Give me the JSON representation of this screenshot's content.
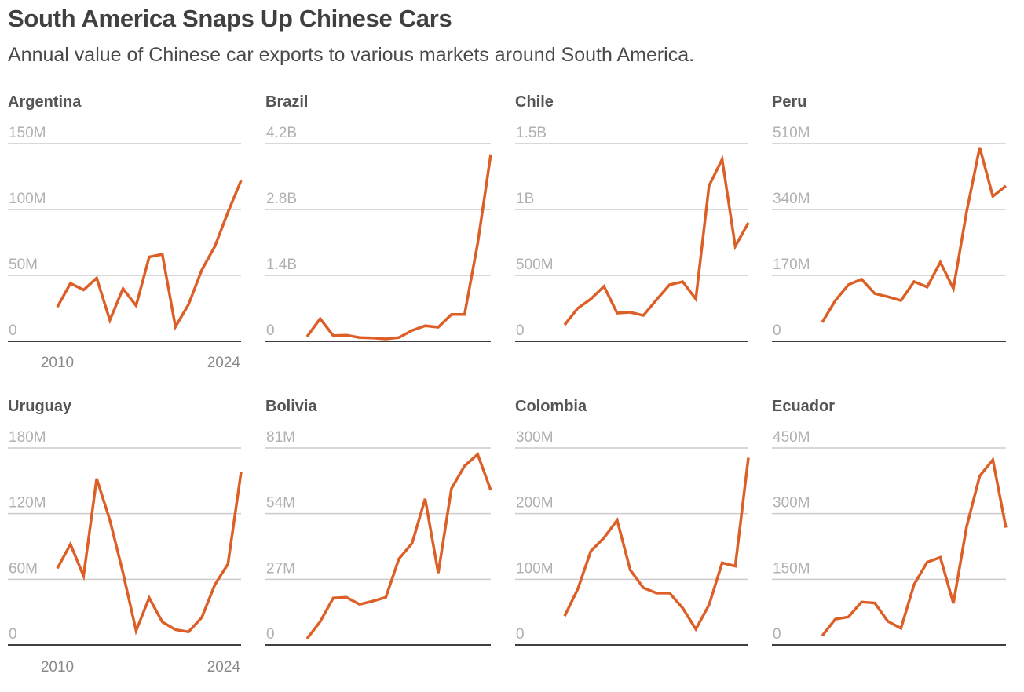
{
  "header": {
    "title": "South America Snaps Up Chinese Cars",
    "subtitle": "Annual value of Chinese car exports to various markets around South America."
  },
  "style": {
    "line_color": "#dc5f27",
    "grid_color": "#cccccc",
    "baseline_color": "#3f3f3f"
  },
  "chart_data": [
    {
      "type": "line",
      "title": "Argentina",
      "x": [
        2010,
        2011,
        2012,
        2013,
        2014,
        2015,
        2016,
        2017,
        2018,
        2019,
        2020,
        2021,
        2022,
        2023,
        2024
      ],
      "x_tick_labels": [
        "2010",
        "2024"
      ],
      "unit": "USD millions",
      "y_ticks": [
        0,
        50,
        100,
        150
      ],
      "y_tick_labels": [
        "0",
        "50M",
        "100M",
        "150M"
      ],
      "ylim": [
        0,
        150
      ],
      "values": [
        26,
        44,
        39,
        48,
        16,
        40,
        27,
        64,
        66,
        11,
        28,
        54,
        72,
        98,
        122
      ]
    },
    {
      "type": "line",
      "title": "Brazil",
      "x": [
        2010,
        2011,
        2012,
        2013,
        2014,
        2015,
        2016,
        2017,
        2018,
        2019,
        2020,
        2021,
        2022,
        2023,
        2024
      ],
      "x_tick_labels": [],
      "unit": "USD billions",
      "y_ticks": [
        0,
        1.4,
        2.8,
        4.2
      ],
      "y_tick_labels": [
        "0",
        "1.4B",
        "2.8B",
        "4.2B"
      ],
      "ylim": [
        0,
        4.2
      ],
      "values": [
        0.1,
        0.48,
        0.12,
        0.13,
        0.08,
        0.07,
        0.05,
        0.08,
        0.23,
        0.33,
        0.3,
        0.57,
        0.57,
        2.08,
        3.97
      ]
    },
    {
      "type": "line",
      "title": "Chile",
      "x": [
        2010,
        2011,
        2012,
        2013,
        2014,
        2015,
        2016,
        2017,
        2018,
        2019,
        2020,
        2021,
        2022,
        2023,
        2024
      ],
      "x_tick_labels": [],
      "unit": "USD millions",
      "y_ticks": [
        0,
        500,
        1000,
        1500
      ],
      "y_tick_labels": [
        "0",
        "500M",
        "1B",
        "1.5B"
      ],
      "ylim": [
        0,
        1500
      ],
      "values": [
        125,
        250,
        321,
        417,
        214,
        220,
        196,
        315,
        429,
        452,
        321,
        1179,
        1381,
        720,
        899
      ]
    },
    {
      "type": "line",
      "title": "Peru",
      "x": [
        2010,
        2011,
        2012,
        2013,
        2014,
        2015,
        2016,
        2017,
        2018,
        2019,
        2020,
        2021,
        2022,
        2023,
        2024
      ],
      "x_tick_labels": [],
      "unit": "USD millions",
      "y_ticks": [
        0,
        170,
        340,
        510
      ],
      "y_tick_labels": [
        "0",
        "170M",
        "340M",
        "510M"
      ],
      "ylim": [
        0,
        510
      ],
      "values": [
        49,
        105,
        146,
        160,
        123,
        115,
        105,
        154,
        140,
        204,
        136,
        334,
        500,
        374,
        401
      ]
    },
    {
      "type": "line",
      "title": "Uruguay",
      "x": [
        2010,
        2011,
        2012,
        2013,
        2014,
        2015,
        2016,
        2017,
        2018,
        2019,
        2020,
        2021,
        2022,
        2023,
        2024
      ],
      "x_tick_labels": [
        "2010",
        "2024"
      ],
      "unit": "USD millions",
      "y_ticks": [
        0,
        60,
        120,
        180
      ],
      "y_tick_labels": [
        "0",
        "60M",
        "120M",
        "180M"
      ],
      "ylim": [
        0,
        180
      ],
      "values": [
        70,
        92,
        63,
        152,
        114,
        66,
        13,
        43,
        21,
        14,
        12,
        25,
        55,
        74,
        158
      ]
    },
    {
      "type": "line",
      "title": "Bolivia",
      "x": [
        2010,
        2011,
        2012,
        2013,
        2014,
        2015,
        2016,
        2017,
        2018,
        2019,
        2020,
        2021,
        2022,
        2023,
        2024
      ],
      "x_tick_labels": [],
      "unit": "USD millions",
      "y_ticks": [
        0,
        27,
        54,
        81
      ],
      "y_tick_labels": [
        "0",
        "27M",
        "54M",
        "81M"
      ],
      "ylim": [
        0,
        81
      ],
      "values": [
        2.6,
        9.6,
        19.3,
        19.6,
        16.7,
        18.0,
        19.6,
        35.4,
        41.8,
        60.1,
        29.6,
        64.3,
        73.6,
        78.4,
        63.6
      ]
    },
    {
      "type": "line",
      "title": "Colombia",
      "x": [
        2010,
        2011,
        2012,
        2013,
        2014,
        2015,
        2016,
        2017,
        2018,
        2019,
        2020,
        2021,
        2022,
        2023,
        2024
      ],
      "x_tick_labels": [],
      "unit": "USD millions",
      "y_ticks": [
        0,
        100,
        200,
        300
      ],
      "y_tick_labels": [
        "0",
        "100M",
        "200M",
        "300M"
      ],
      "ylim": [
        0,
        300
      ],
      "values": [
        44,
        85,
        143,
        163,
        190,
        114,
        87,
        79,
        79,
        56,
        24,
        61,
        125,
        120,
        285
      ]
    },
    {
      "type": "line",
      "title": "Ecuador",
      "x": [
        2010,
        2011,
        2012,
        2013,
        2014,
        2015,
        2016,
        2017,
        2018,
        2019,
        2020,
        2021,
        2022,
        2023,
        2024
      ],
      "x_tick_labels": [],
      "unit": "USD millions",
      "y_ticks": [
        0,
        150,
        300,
        450
      ],
      "y_tick_labels": [
        "0",
        "150M",
        "300M",
        "450M"
      ],
      "ylim": [
        0,
        450
      ],
      "values": [
        21,
        59,
        64,
        98,
        96,
        54,
        38,
        138,
        189,
        200,
        95,
        270,
        386,
        423,
        268
      ]
    }
  ]
}
